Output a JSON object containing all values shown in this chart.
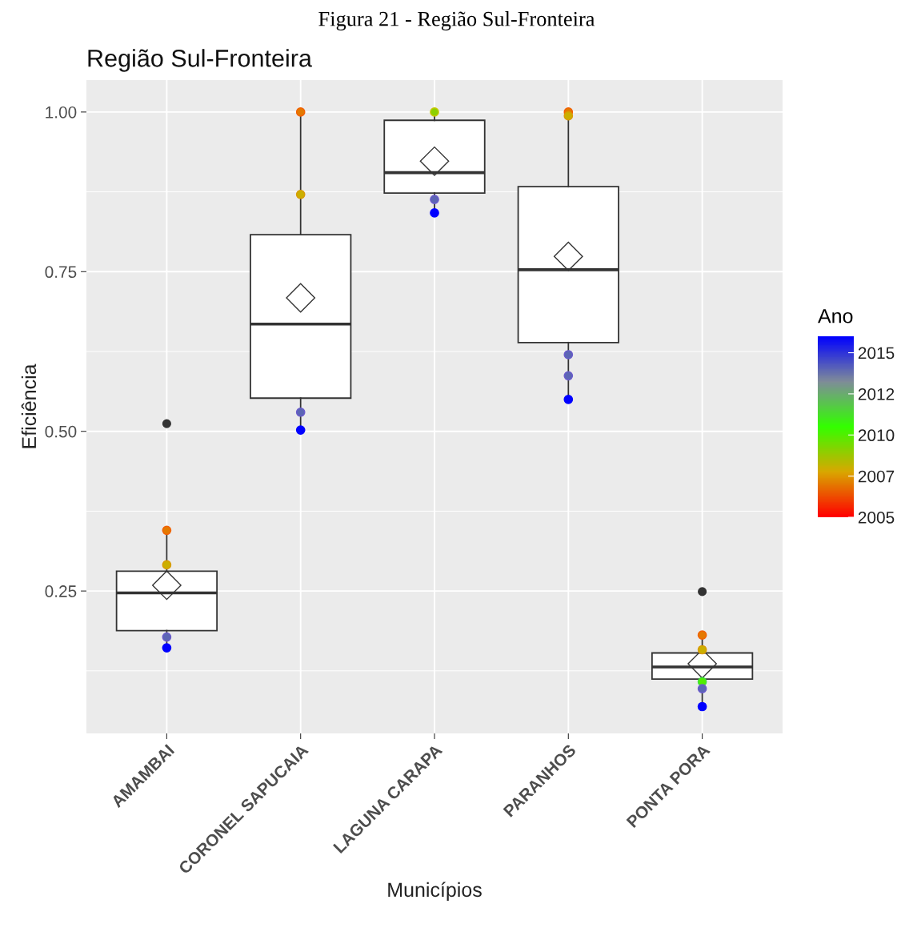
{
  "chart_data": {
    "type": "box",
    "title": "Região Sul-Fronteira",
    "xlabel": "Municípios",
    "ylabel": "Eficiência",
    "clabel": "Ano",
    "annotations": [
      "Figura 21 - Região Sul-Fronteira"
    ],
    "categories": [
      "AMAMBAI",
      "CORONEL SAPUCAIA",
      "LAGUNA CARAPA",
      "PARANHOS",
      "PONTA PORA"
    ],
    "boxes": [
      {
        "low": 0.161,
        "q1": 0.188,
        "median": 0.247,
        "q3": 0.281,
        "high": 0.345,
        "mean": 0.259,
        "outliers": [
          0.512
        ]
      },
      {
        "low": 0.502,
        "q1": 0.552,
        "median": 0.668,
        "q3": 0.808,
        "high": 1.0,
        "mean": 0.709
      },
      {
        "low": 0.842,
        "q1": 0.873,
        "median": 0.905,
        "q3": 0.987,
        "high": 1.0,
        "mean": 0.923
      },
      {
        "low": 0.55,
        "q1": 0.639,
        "median": 0.753,
        "q3": 0.883,
        "high": 1.0,
        "mean": 0.774
      },
      {
        "low": 0.069,
        "q1": 0.112,
        "median": 0.131,
        "q3": 0.153,
        "high": 0.181,
        "mean": 0.136,
        "outliers": [
          0.249
        ]
      }
    ],
    "series": [
      {
        "type": "scatter",
        "x": [
          "AMAMBAI",
          "AMAMBAI",
          "AMAMBAI",
          "AMAMBAI",
          "CORONEL SAPUCAIA",
          "CORONEL SAPUCAIA",
          "CORONEL SAPUCAIA",
          "CORONEL SAPUCAIA",
          "LAGUNA CARAPA",
          "LAGUNA CARAPA",
          "LAGUNA CARAPA",
          "PARANHOS",
          "PARANHOS",
          "PARANHOS",
          "PARANHOS",
          "PARANHOS",
          "PONTA PORA",
          "PONTA PORA",
          "PONTA PORA",
          "PONTA PORA",
          "PONTA PORA"
        ],
        "values": [
          0.345,
          0.291,
          0.178,
          0.161,
          1.0,
          0.871,
          0.53,
          0.502,
          1.0,
          0.863,
          0.842,
          1.0,
          0.994,
          0.62,
          0.587,
          0.55,
          0.181,
          0.158,
          0.108,
          0.097,
          0.069
        ],
        "colors": [
          "#f26000",
          "#d99a00",
          "#6a5acd",
          "#0000ff",
          "#f26000",
          "#d99a00",
          "#6a5acd",
          "#0000ff",
          "#c8c800",
          "#6a5acd",
          "#0000ff",
          "#f26000",
          "#d99a00",
          "#6a5acd",
          "#6a5acd",
          "#0000ff",
          "#f26000",
          "#d99a00",
          "#40e040",
          "#6a5acd",
          "#0000ff"
        ],
        "cvalues": [
          2007,
          2008,
          2014,
          2016,
          2007,
          2008,
          2014,
          2016,
          2009,
          2014,
          2016,
          2007,
          2008,
          2014,
          2014,
          2016,
          2007,
          2008,
          2010,
          2014,
          2016
        ]
      }
    ],
    "ylim": [
      0.027,
      1.05
    ],
    "yticks": [
      {
        "value": 0.25,
        "label": "0.25"
      },
      {
        "value": 0.5,
        "label": "0.50"
      },
      {
        "value": 0.75,
        "label": "0.75"
      },
      {
        "value": 1.0,
        "label": "1.00"
      }
    ],
    "clim": [
      2005,
      2016
    ],
    "cticks": [
      {
        "value": 2005,
        "label": "2005"
      },
      {
        "value": 2007.5,
        "label": "2007"
      },
      {
        "value": 2010,
        "label": "2010"
      },
      {
        "value": 2012.5,
        "label": "2012"
      },
      {
        "value": 2015,
        "label": "2015"
      }
    ],
    "grid": true,
    "marker": "circle"
  }
}
